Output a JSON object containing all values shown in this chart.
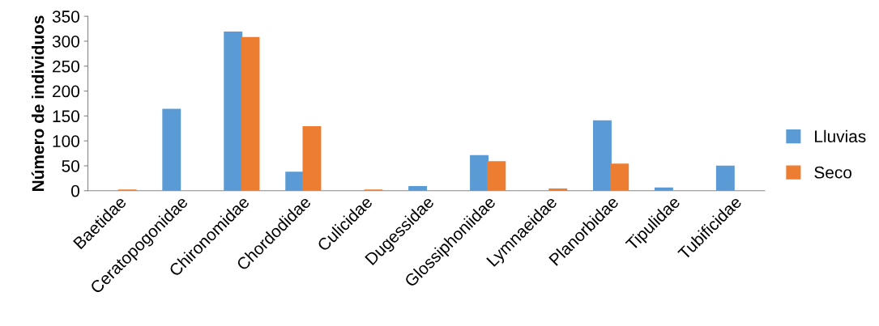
{
  "chart_data": {
    "type": "bar",
    "ylabel": "Número de individuos",
    "categories": [
      "Baetidae",
      "Ceratopogonidae",
      "Chironomidae",
      "Chordodidae",
      "Culicidae",
      "Dugessidae",
      "Glossiphoniidae",
      "Lymnaeidae",
      "Planorbidae",
      "Tipulidae",
      "Tubificidae"
    ],
    "series": [
      {
        "name": "Lluvias",
        "color": "#5b9bd5",
        "values": [
          0,
          163,
          318,
          37,
          0,
          8,
          70,
          0,
          140,
          5,
          49
        ]
      },
      {
        "name": "Seco",
        "color": "#ed7d31",
        "values": [
          1,
          0,
          307,
          128,
          1,
          0,
          58,
          3,
          53,
          0,
          0
        ]
      }
    ],
    "ylim": [
      0,
      350
    ],
    "yticks": [
      0,
      50,
      100,
      150,
      200,
      250,
      300,
      350
    ],
    "grid": false,
    "legend": "right"
  }
}
